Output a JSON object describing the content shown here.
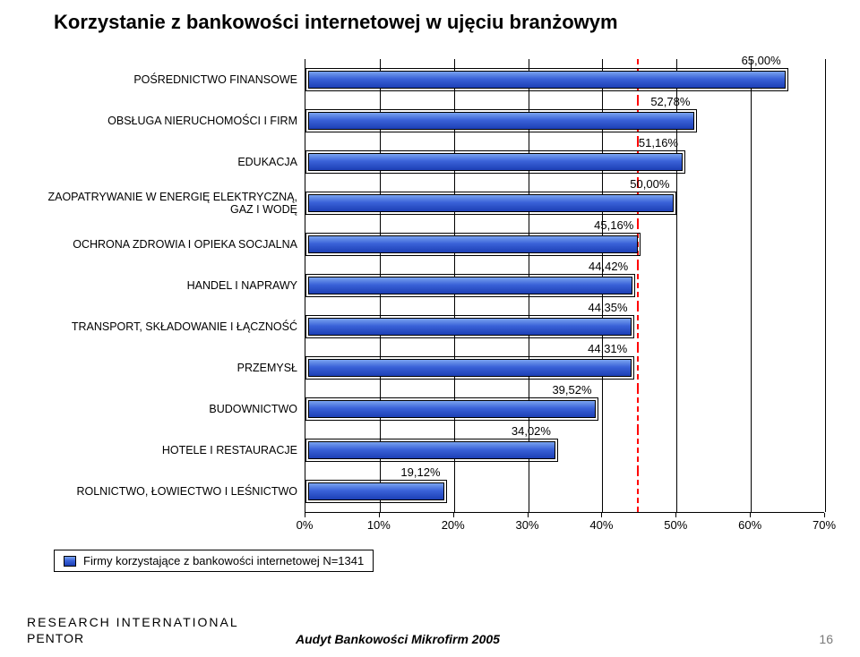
{
  "title": "Korzystanie z bankowości internetowej w ujęciu branżowym",
  "chart": {
    "type": "bar",
    "orientation": "horizontal",
    "x_min": 0,
    "x_max": 70,
    "x_tick_step": 10,
    "x_tick_labels": [
      "0%",
      "10%",
      "20%",
      "30%",
      "40%",
      "50%",
      "60%",
      "70%"
    ],
    "bar_fill_gradient": [
      "#7aa3ef",
      "#3a62d8",
      "#1c3fb5"
    ],
    "bar_border_color": "#000000",
    "tick_line_color": "#000000",
    "background_color": "#ffffff",
    "label_fontsize": 12.5,
    "value_label_fontsize": 13,
    "reference_line": {
      "value": 44.7,
      "color": "#ff0000",
      "dash": "2,3",
      "width": 2
    },
    "categories": [
      {
        "label": "POŚREDNICTWO FINANSOWE",
        "value": 65.0,
        "value_label": "65,00%"
      },
      {
        "label": "OBSŁUGA NIERUCHOMOŚCI I FIRM",
        "value": 52.78,
        "value_label": "52,78%"
      },
      {
        "label": "EDUKACJA",
        "value": 51.16,
        "value_label": "51,16%"
      },
      {
        "label": "ZAOPATRYWANIE W ENERGIĘ ELEKTRYCZNĄ, GAZ I WODĘ",
        "value": 50.0,
        "value_label": "50,00%"
      },
      {
        "label": "OCHRONA ZDROWIA I OPIEKA SOCJALNA",
        "value": 45.16,
        "value_label": "45,16%"
      },
      {
        "label": "HANDEL I NAPRAWY",
        "value": 44.42,
        "value_label": "44,42%"
      },
      {
        "label": "TRANSPORT, SKŁADOWANIE I ŁĄCZNOŚĆ",
        "value": 44.35,
        "value_label": "44,35%"
      },
      {
        "label": "PRZEMYSŁ",
        "value": 44.31,
        "value_label": "44,31%"
      },
      {
        "label": "BUDOWNICTWO",
        "value": 39.52,
        "value_label": "39,52%"
      },
      {
        "label": "HOTELE I RESTAURACJE",
        "value": 34.02,
        "value_label": "34,02%"
      },
      {
        "label": "ROLNICTWO, ŁOWIECTWO I LEŚNICTWO",
        "value": 19.12,
        "value_label": "19,12%"
      }
    ]
  },
  "legend_label": "Firmy korzystające z bankowości internetowej N=1341",
  "brand_line1": "RESEARCH INTERNATIONAL",
  "brand_line2": "PENTOR",
  "footer_subtitle": "Audyt Bankowości Mikrofirm 2005",
  "page_number": "16"
}
